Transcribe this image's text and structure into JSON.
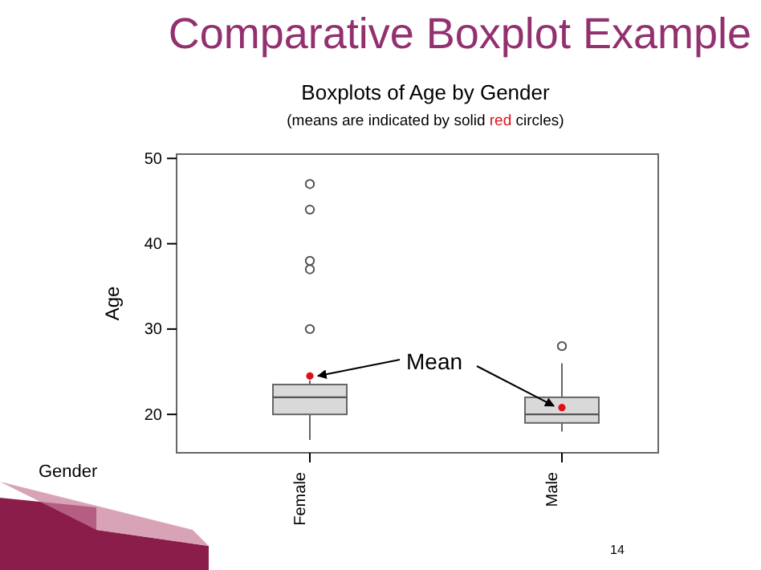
{
  "chart_data": {
    "type": "box",
    "title": "Comparative Boxplot Example",
    "subtitle": "Boxplots of Age by Gender",
    "annotations": [
      "(means are indicated by solid red circles)",
      "Mean",
      "14"
    ],
    "xlabel": "Gender",
    "ylabel": "Age",
    "categories": [
      "Female",
      "Male"
    ],
    "boxes": [
      {
        "low": 17,
        "q1": 20,
        "median": 22,
        "q3": 23.5,
        "high": 24,
        "mean": 24.5,
        "outliers": [
          30,
          37,
          38,
          44,
          47
        ]
      },
      {
        "low": 18,
        "q1": 19,
        "median": 20,
        "q3": 22,
        "high": 26,
        "mean": 20.8,
        "outliers": [
          28
        ]
      }
    ],
    "color": "#d9d9d9",
    "ylim": [
      15.5,
      50.5
    ],
    "yticks": [
      20,
      30,
      40,
      50
    ],
    "grid": false
  }
}
